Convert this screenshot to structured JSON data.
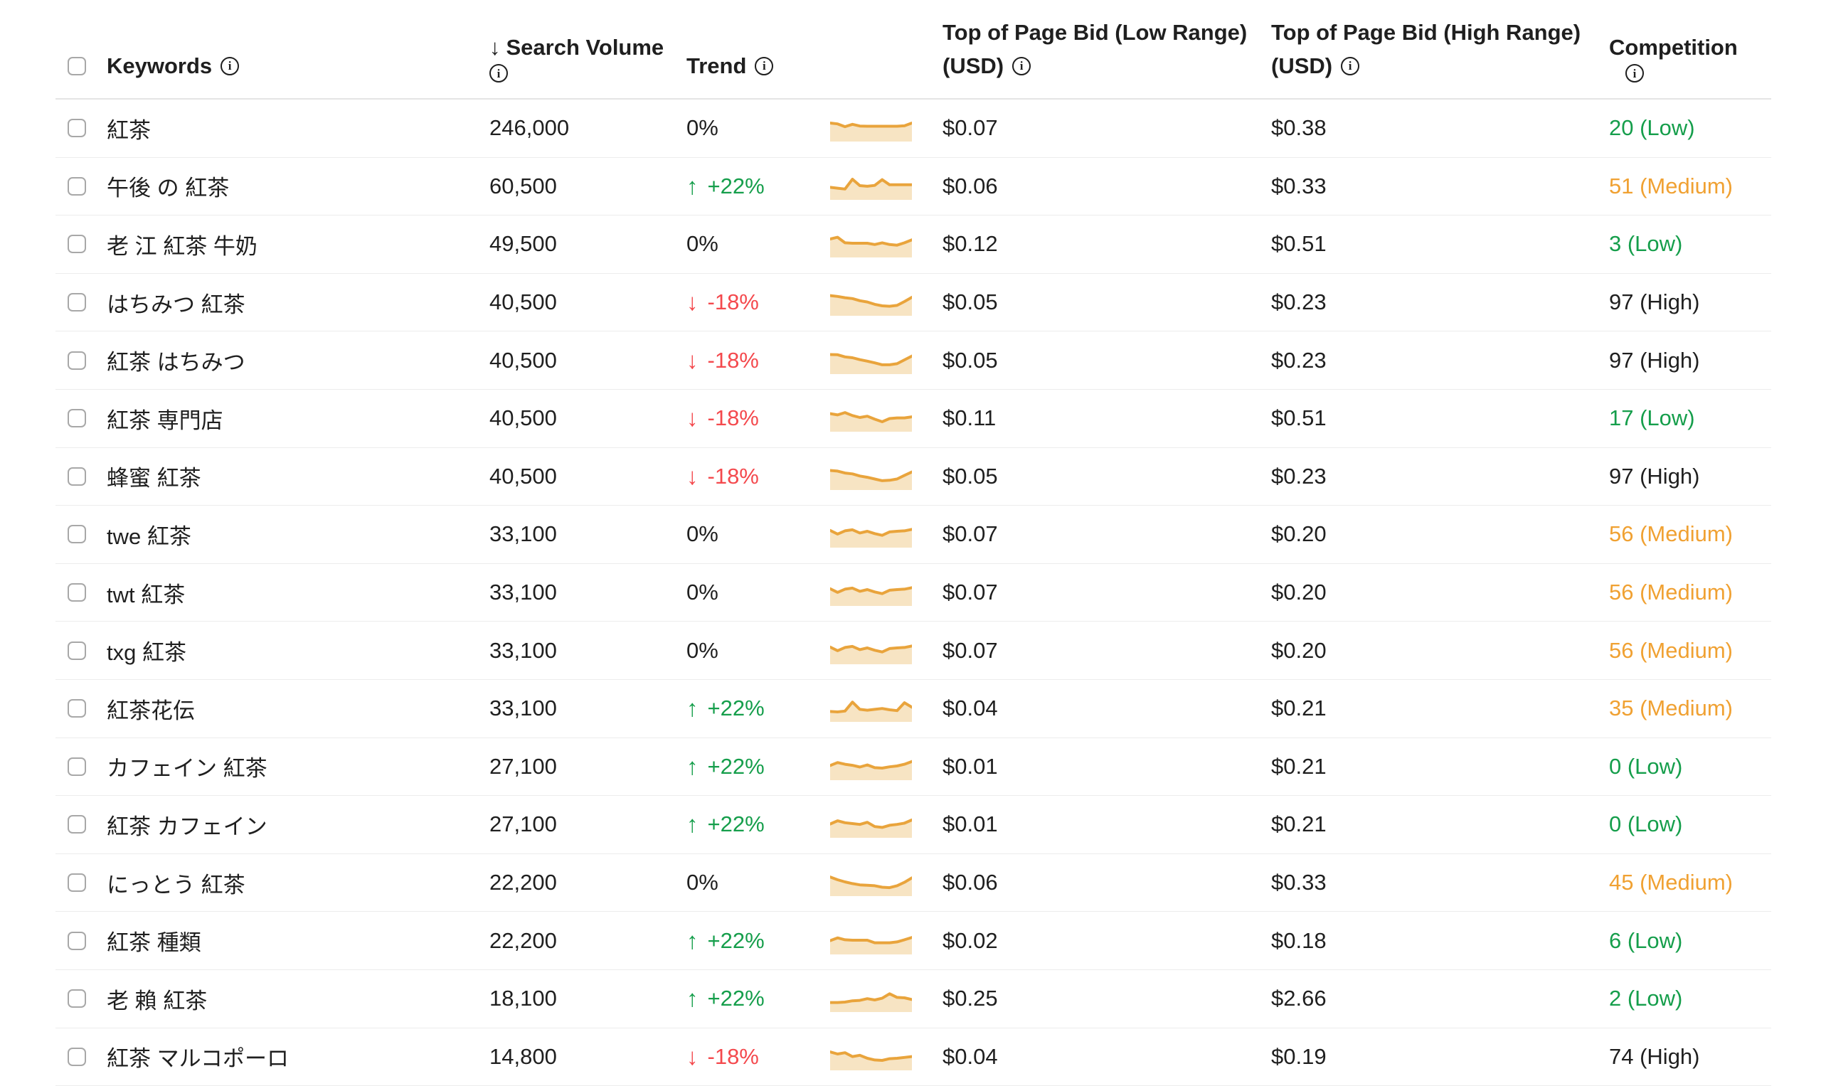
{
  "header": {
    "keywords_label": "Keywords",
    "sort_arrow": "↓",
    "search_volume_label": "Search Volume",
    "trend_label": "Trend",
    "bid_low_line1": "Top of Page Bid (Low Range)",
    "bid_low_line2": "(USD)",
    "bid_high_line1": "Top of Page Bid (High Range)",
    "bid_high_line2": "(USD)",
    "competition_label": "Competition",
    "info_glyph": "i"
  },
  "trend_glyphs": {
    "up": "↑",
    "down": "↓"
  },
  "colors": {
    "green": "#159e4b",
    "red": "#f4494d",
    "orange": "#f0a132",
    "spark_line": "#e9a43c",
    "spark_fill": "#f7e4c3"
  },
  "rows": [
    {
      "keyword": "紅茶",
      "volume": "246,000",
      "trend": "0%",
      "trend_dir": "flat",
      "bid_low": "$0.07",
      "bid_high": "$0.38",
      "competition": "20 (Low)",
      "competition_level": "low",
      "spark": [
        80,
        76,
        63,
        74,
        66,
        65,
        65,
        65,
        65,
        65,
        67,
        80
      ]
    },
    {
      "keyword": "午後 の 紅茶",
      "volume": "60,500",
      "trend": "+22%",
      "trend_dir": "up",
      "bid_low": "$0.06",
      "bid_high": "$0.33",
      "competition": "51 (Medium)",
      "competition_level": "medium",
      "spark": [
        52,
        48,
        44,
        90,
        60,
        57,
        61,
        88,
        64,
        64,
        64,
        64
      ]
    },
    {
      "keyword": "老 江 紅茶 牛奶",
      "volume": "49,500",
      "trend": "0%",
      "trend_dir": "flat",
      "bid_low": "$0.12",
      "bid_high": "$0.51",
      "competition": "3 (Low)",
      "competition_level": "low",
      "spark": [
        80,
        88,
        62,
        60,
        60,
        60,
        54,
        62,
        54,
        51,
        62,
        76
      ]
    },
    {
      "keyword": "はちみつ 紅茶",
      "volume": "40,500",
      "trend": "-18%",
      "trend_dir": "down",
      "bid_low": "$0.05",
      "bid_high": "$0.23",
      "competition": "97 (High)",
      "competition_level": "high",
      "spark": [
        88,
        84,
        78,
        74,
        64,
        58,
        47,
        40,
        38,
        42,
        60,
        80
      ]
    },
    {
      "keyword": "紅茶 はちみつ",
      "volume": "40,500",
      "trend": "-18%",
      "trend_dir": "down",
      "bid_low": "$0.05",
      "bid_high": "$0.23",
      "competition": "97 (High)",
      "competition_level": "high",
      "spark": [
        85,
        84,
        74,
        70,
        61,
        54,
        46,
        37,
        37,
        42,
        60,
        78
      ]
    },
    {
      "keyword": "紅茶 専門店",
      "volume": "40,500",
      "trend": "-18%",
      "trend_dir": "down",
      "bid_low": "$0.11",
      "bid_high": "$0.51",
      "competition": "17 (Low)",
      "competition_level": "low",
      "spark": [
        78,
        72,
        83,
        69,
        60,
        66,
        52,
        40,
        55,
        58,
        58,
        63
      ]
    },
    {
      "keyword": "蜂蜜 紅茶",
      "volume": "40,500",
      "trend": "-18%",
      "trend_dir": "down",
      "bid_low": "$0.05",
      "bid_high": "$0.23",
      "competition": "97 (High)",
      "competition_level": "high",
      "spark": [
        85,
        82,
        73,
        69,
        59,
        53,
        45,
        37,
        39,
        45,
        62,
        78
      ]
    },
    {
      "keyword": "twe 紅茶",
      "volume": "33,100",
      "trend": "0%",
      "trend_dir": "flat",
      "bid_low": "$0.07",
      "bid_high": "$0.20",
      "competition": "56 (Medium)",
      "competition_level": "medium",
      "spark": [
        74,
        57,
        72,
        77,
        62,
        70,
        59,
        51,
        67,
        70,
        72,
        79
      ]
    },
    {
      "keyword": "twt 紅茶",
      "volume": "33,100",
      "trend": "0%",
      "trend_dir": "flat",
      "bid_low": "$0.07",
      "bid_high": "$0.20",
      "competition": "56 (Medium)",
      "competition_level": "medium",
      "spark": [
        74,
        57,
        72,
        77,
        62,
        70,
        59,
        51,
        67,
        70,
        72,
        79
      ]
    },
    {
      "keyword": "txg 紅茶",
      "volume": "33,100",
      "trend": "0%",
      "trend_dir": "flat",
      "bid_low": "$0.07",
      "bid_high": "$0.20",
      "competition": "56 (Medium)",
      "competition_level": "medium",
      "spark": [
        74,
        57,
        72,
        77,
        62,
        70,
        59,
        51,
        67,
        70,
        72,
        79
      ]
    },
    {
      "keyword": "紅茶花伝",
      "volume": "33,100",
      "trend": "+22%",
      "trend_dir": "up",
      "bid_low": "$0.04",
      "bid_high": "$0.21",
      "competition": "35 (Medium)",
      "competition_level": "medium",
      "spark": [
        42,
        40,
        44,
        86,
        52,
        48,
        52,
        56,
        50,
        46,
        83,
        62
      ]
    },
    {
      "keyword": "カフェイン 紅茶",
      "volume": "27,100",
      "trend": "+22%",
      "trend_dir": "up",
      "bid_low": "$0.01",
      "bid_high": "$0.21",
      "competition": "0 (Low)",
      "competition_level": "low",
      "spark": [
        62,
        76,
        68,
        63,
        55,
        65,
        52,
        50,
        56,
        60,
        68,
        81
      ]
    },
    {
      "keyword": "紅茶 カフェイン",
      "volume": "27,100",
      "trend": "+22%",
      "trend_dir": "up",
      "bid_low": "$0.01",
      "bid_high": "$0.21",
      "competition": "0 (Low)",
      "competition_level": "low",
      "spark": [
        58,
        73,
        64,
        60,
        56,
        66,
        46,
        42,
        52,
        56,
        62,
        77
      ]
    },
    {
      "keyword": "にっとう 紅茶",
      "volume": "22,200",
      "trend": "0%",
      "trend_dir": "flat",
      "bid_low": "$0.06",
      "bid_high": "$0.33",
      "competition": "45 (Medium)",
      "competition_level": "medium",
      "spark": [
        83,
        70,
        60,
        52,
        46,
        44,
        42,
        35,
        33,
        42,
        58,
        79
      ]
    },
    {
      "keyword": "紅茶 種類",
      "volume": "22,200",
      "trend": "+22%",
      "trend_dir": "up",
      "bid_low": "$0.02",
      "bid_high": "$0.18",
      "competition": "6 (Low)",
      "competition_level": "low",
      "spark": [
        58,
        71,
        62,
        60,
        60,
        60,
        48,
        48,
        48,
        52,
        62,
        73
      ]
    },
    {
      "keyword": "老 賴 紅茶",
      "volume": "18,100",
      "trend": "+22%",
      "trend_dir": "up",
      "bid_low": "$0.25",
      "bid_high": "$2.66",
      "competition": "2 (Low)",
      "competition_level": "low",
      "spark": [
        38,
        38,
        40,
        46,
        48,
        56,
        50,
        58,
        79,
        62,
        60,
        52
      ]
    },
    {
      "keyword": "紅茶 マルコポーロ",
      "volume": "14,800",
      "trend": "-18%",
      "trend_dir": "down",
      "bid_low": "$0.04",
      "bid_high": "$0.19",
      "competition": "74 (High)",
      "competition_level": "high",
      "spark": [
        80,
        70,
        76,
        58,
        64,
        50,
        42,
        40,
        48,
        50,
        54,
        58
      ]
    }
  ]
}
